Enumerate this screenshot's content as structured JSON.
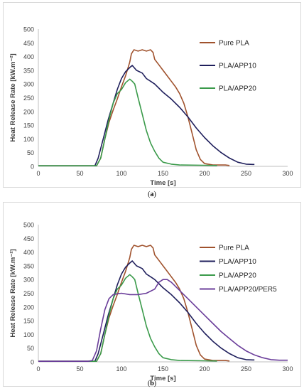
{
  "chart_data": [
    {
      "type": "line",
      "panel": "a",
      "caption": "a",
      "xlabel": "Time [s]",
      "ylabel": "Heat Release Rate  [kW.m⁻²]",
      "xlim": [
        0,
        300
      ],
      "ylim": [
        0,
        500
      ],
      "xticks": [
        0,
        50,
        100,
        150,
        200,
        250,
        300
      ],
      "yticks": [
        0,
        50,
        100,
        150,
        200,
        250,
        300,
        350,
        400,
        450,
        500
      ],
      "grid": false,
      "legend": "right",
      "series": [
        {
          "name": "Pure PLA",
          "color": "#a0522d",
          "points": [
            [
              0,
              2
            ],
            [
              70,
              2
            ],
            [
              75,
              30
            ],
            [
              80,
              100
            ],
            [
              85,
              160
            ],
            [
              90,
              205
            ],
            [
              95,
              245
            ],
            [
              100,
              290
            ],
            [
              105,
              330
            ],
            [
              110,
              380
            ],
            [
              112,
              410
            ],
            [
              115,
              425
            ],
            [
              120,
              420
            ],
            [
              125,
              425
            ],
            [
              130,
              420
            ],
            [
              135,
              425
            ],
            [
              138,
              415
            ],
            [
              140,
              390
            ],
            [
              145,
              370
            ],
            [
              150,
              350
            ],
            [
              155,
              330
            ],
            [
              160,
              310
            ],
            [
              165,
              290
            ],
            [
              170,
              265
            ],
            [
              175,
              230
            ],
            [
              180,
              180
            ],
            [
              185,
              120
            ],
            [
              190,
              60
            ],
            [
              195,
              25
            ],
            [
              200,
              10
            ],
            [
              210,
              5
            ],
            [
              225,
              5
            ],
            [
              230,
              3
            ]
          ]
        },
        {
          "name": "PLA/APP10",
          "color": "#1f1f5c",
          "points": [
            [
              0,
              2
            ],
            [
              50,
              2
            ],
            [
              68,
              2
            ],
            [
              72,
              30
            ],
            [
              78,
              100
            ],
            [
              84,
              170
            ],
            [
              90,
              230
            ],
            [
              95,
              280
            ],
            [
              100,
              320
            ],
            [
              105,
              345
            ],
            [
              110,
              360
            ],
            [
              113,
              368
            ],
            [
              118,
              350
            ],
            [
              125,
              340
            ],
            [
              130,
              320
            ],
            [
              135,
              310
            ],
            [
              140,
              300
            ],
            [
              145,
              285
            ],
            [
              150,
              270
            ],
            [
              160,
              245
            ],
            [
              170,
              215
            ],
            [
              180,
              180
            ],
            [
              190,
              140
            ],
            [
              200,
              105
            ],
            [
              210,
              75
            ],
            [
              220,
              50
            ],
            [
              230,
              30
            ],
            [
              240,
              15
            ],
            [
              250,
              8
            ],
            [
              258,
              7
            ],
            [
              260,
              7
            ]
          ]
        },
        {
          "name": "PLA/APP20",
          "color": "#3a9a4a",
          "points": [
            [
              0,
              2
            ],
            [
              70,
              2
            ],
            [
              75,
              30
            ],
            [
              80,
              100
            ],
            [
              85,
              170
            ],
            [
              90,
              230
            ],
            [
              95,
              265
            ],
            [
              100,
              280
            ],
            [
              105,
              305
            ],
            [
              110,
              318
            ],
            [
              113,
              310
            ],
            [
              116,
              300
            ],
            [
              120,
              250
            ],
            [
              125,
              190
            ],
            [
              130,
              130
            ],
            [
              135,
              85
            ],
            [
              140,
              55
            ],
            [
              145,
              30
            ],
            [
              150,
              15
            ],
            [
              160,
              8
            ],
            [
              170,
              5
            ],
            [
              200,
              4
            ],
            [
              215,
              3
            ]
          ]
        }
      ]
    },
    {
      "type": "line",
      "panel": "b",
      "caption": "b",
      "xlabel": "Time [s]",
      "ylabel": "Heat Release Rate  [kW.m⁻²]",
      "xlim": [
        0,
        300
      ],
      "ylim": [
        0,
        500
      ],
      "xticks": [
        0,
        50,
        100,
        150,
        200,
        250,
        300
      ],
      "yticks": [
        0,
        50,
        100,
        150,
        200,
        250,
        300,
        350,
        400,
        450,
        500
      ],
      "grid": false,
      "legend": "right",
      "series": [
        {
          "name": "Pure PLA",
          "color": "#a0522d",
          "points": [
            [
              0,
              2
            ],
            [
              70,
              2
            ],
            [
              75,
              30
            ],
            [
              80,
              100
            ],
            [
              85,
              160
            ],
            [
              90,
              205
            ],
            [
              95,
              245
            ],
            [
              100,
              290
            ],
            [
              105,
              330
            ],
            [
              110,
              380
            ],
            [
              112,
              410
            ],
            [
              115,
              425
            ],
            [
              120,
              420
            ],
            [
              125,
              425
            ],
            [
              130,
              420
            ],
            [
              135,
              425
            ],
            [
              138,
              415
            ],
            [
              140,
              390
            ],
            [
              145,
              370
            ],
            [
              150,
              350
            ],
            [
              155,
              330
            ],
            [
              160,
              310
            ],
            [
              165,
              290
            ],
            [
              170,
              265
            ],
            [
              175,
              230
            ],
            [
              180,
              180
            ],
            [
              185,
              120
            ],
            [
              190,
              60
            ],
            [
              195,
              25
            ],
            [
              200,
              10
            ],
            [
              210,
              5
            ],
            [
              225,
              5
            ],
            [
              230,
              3
            ]
          ]
        },
        {
          "name": "PLA/APP10",
          "color": "#1f1f5c",
          "points": [
            [
              0,
              2
            ],
            [
              50,
              2
            ],
            [
              68,
              2
            ],
            [
              72,
              30
            ],
            [
              78,
              100
            ],
            [
              84,
              170
            ],
            [
              90,
              230
            ],
            [
              95,
              280
            ],
            [
              100,
              320
            ],
            [
              105,
              345
            ],
            [
              110,
              360
            ],
            [
              113,
              368
            ],
            [
              118,
              350
            ],
            [
              125,
              340
            ],
            [
              130,
              320
            ],
            [
              135,
              310
            ],
            [
              140,
              300
            ],
            [
              145,
              285
            ],
            [
              150,
              270
            ],
            [
              160,
              245
            ],
            [
              170,
              215
            ],
            [
              180,
              180
            ],
            [
              190,
              140
            ],
            [
              200,
              105
            ],
            [
              210,
              75
            ],
            [
              220,
              50
            ],
            [
              230,
              30
            ],
            [
              240,
              15
            ],
            [
              250,
              8
            ],
            [
              258,
              7
            ],
            [
              260,
              7
            ]
          ]
        },
        {
          "name": "PLA/APP20",
          "color": "#3a9a4a",
          "points": [
            [
              0,
              2
            ],
            [
              70,
              2
            ],
            [
              75,
              30
            ],
            [
              80,
              100
            ],
            [
              85,
              170
            ],
            [
              90,
              230
            ],
            [
              95,
              265
            ],
            [
              100,
              280
            ],
            [
              105,
              305
            ],
            [
              110,
              318
            ],
            [
              113,
              310
            ],
            [
              116,
              300
            ],
            [
              120,
              250
            ],
            [
              125,
              190
            ],
            [
              130,
              130
            ],
            [
              135,
              85
            ],
            [
              140,
              55
            ],
            [
              145,
              30
            ],
            [
              150,
              15
            ],
            [
              160,
              8
            ],
            [
              170,
              5
            ],
            [
              200,
              4
            ],
            [
              215,
              3
            ]
          ]
        },
        {
          "name": "PLA/APP20/PER5",
          "color": "#6a3d9a",
          "points": [
            [
              0,
              2
            ],
            [
              60,
              2
            ],
            [
              65,
              5
            ],
            [
              70,
              40
            ],
            [
              75,
              120
            ],
            [
              80,
              190
            ],
            [
              85,
              230
            ],
            [
              90,
              245
            ],
            [
              95,
              248
            ],
            [
              100,
              250
            ],
            [
              110,
              245
            ],
            [
              120,
              245
            ],
            [
              130,
              250
            ],
            [
              140,
              265
            ],
            [
              145,
              290
            ],
            [
              150,
              300
            ],
            [
              155,
              300
            ],
            [
              160,
              290
            ],
            [
              170,
              260
            ],
            [
              180,
              230
            ],
            [
              190,
              200
            ],
            [
              200,
              170
            ],
            [
              210,
              140
            ],
            [
              220,
              110
            ],
            [
              230,
              85
            ],
            [
              240,
              60
            ],
            [
              250,
              40
            ],
            [
              260,
              25
            ],
            [
              270,
              15
            ],
            [
              280,
              8
            ],
            [
              290,
              6
            ],
            [
              300,
              6
            ]
          ]
        }
      ]
    }
  ]
}
